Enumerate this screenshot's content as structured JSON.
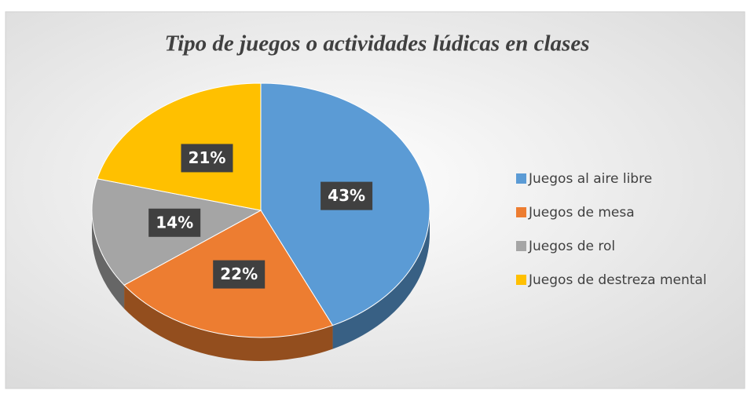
{
  "chart_data": {
    "type": "pie",
    "title": "Tipo de juegos o actividades lúdicas en clases",
    "categories": [
      "Juegos al aire libre",
      "Juegos de mesa",
      "Juegos de rol",
      "Juegos de destreza mental"
    ],
    "values": [
      43,
      22,
      14,
      21
    ],
    "value_labels": [
      "43%",
      "22%",
      "14%",
      "21%"
    ],
    "colors": [
      "#5b9bd5",
      "#ed7d31",
      "#a5a5a5",
      "#ffc000"
    ],
    "legend": "right"
  }
}
